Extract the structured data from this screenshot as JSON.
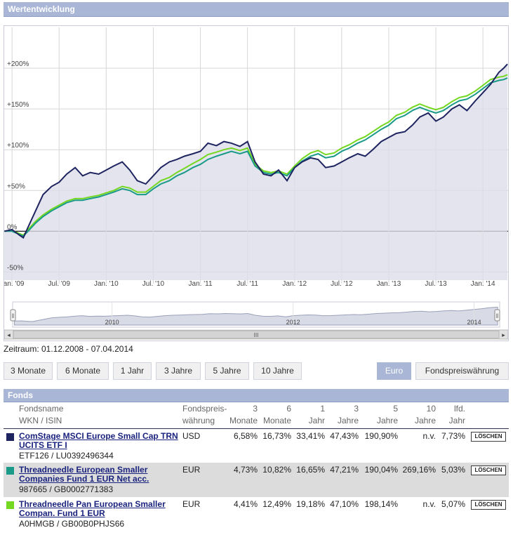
{
  "panel": {
    "title": "Wertentwicklung"
  },
  "chart_data": {
    "type": "line",
    "y_ticks": [
      "+200%",
      "+150%",
      "+100%",
      "+50%",
      "0%",
      "-50%"
    ],
    "y_tick_values": [
      200,
      150,
      100,
      50,
      0,
      -50
    ],
    "ylim": [
      -60,
      250
    ],
    "x_ticks": [
      "Jan. '09",
      "Jul. '09",
      "Jan. '10",
      "Jul. '10",
      "Jan. '11",
      "Jul. '11",
      "Jan. '12",
      "Jul. '12",
      "Jan. '13",
      "Jul. '13",
      "Jan. '14"
    ],
    "x_tick_years": [
      2009.0,
      2009.5,
      2010.0,
      2010.5,
      2011.0,
      2011.5,
      2012.0,
      2012.5,
      2013.0,
      2013.5,
      2014.0
    ],
    "xlim": [
      2008.917,
      2014.267
    ],
    "series": [
      {
        "name": "ComStage MSCI Europe Small Cap TRN UCITS ETF I",
        "color": "#1e2460",
        "x": [
          2008.92,
          2009.0,
          2009.08,
          2009.12,
          2009.17,
          2009.25,
          2009.33,
          2009.42,
          2009.5,
          2009.58,
          2009.67,
          2009.75,
          2009.83,
          2009.92,
          2010.0,
          2010.08,
          2010.17,
          2010.25,
          2010.33,
          2010.42,
          2010.5,
          2010.58,
          2010.67,
          2010.75,
          2010.83,
          2010.92,
          2011.0,
          2011.08,
          2011.17,
          2011.25,
          2011.33,
          2011.42,
          2011.5,
          2011.58,
          2011.67,
          2011.75,
          2011.83,
          2011.92,
          2012.0,
          2012.08,
          2012.17,
          2012.25,
          2012.33,
          2012.42,
          2012.5,
          2012.58,
          2012.67,
          2012.75,
          2012.83,
          2012.92,
          2013.0,
          2013.08,
          2013.17,
          2013.25,
          2013.33,
          2013.42,
          2013.5,
          2013.58,
          2013.67,
          2013.75,
          2013.83,
          2013.92,
          2014.0,
          2014.08,
          2014.17,
          2014.22,
          2014.26
        ],
        "values": [
          0,
          2,
          -5,
          -8,
          5,
          25,
          45,
          55,
          60,
          70,
          78,
          68,
          72,
          70,
          75,
          80,
          85,
          75,
          62,
          58,
          68,
          78,
          85,
          88,
          92,
          95,
          98,
          108,
          105,
          110,
          108,
          104,
          110,
          85,
          70,
          68,
          75,
          62,
          78,
          85,
          90,
          88,
          78,
          80,
          85,
          90,
          95,
          92,
          100,
          110,
          115,
          120,
          122,
          130,
          140,
          145,
          135,
          140,
          150,
          155,
          148,
          160,
          170,
          180,
          195,
          200,
          205
        ]
      },
      {
        "name": "Threadneedle European Smaller Companies Fund 1 EUR Net acc.",
        "color": "#1a9a88",
        "x": [
          2008.92,
          2009.0,
          2009.08,
          2009.12,
          2009.17,
          2009.25,
          2009.33,
          2009.42,
          2009.5,
          2009.58,
          2009.67,
          2009.75,
          2009.83,
          2009.92,
          2010.0,
          2010.08,
          2010.17,
          2010.25,
          2010.33,
          2010.42,
          2010.5,
          2010.58,
          2010.67,
          2010.75,
          2010.83,
          2010.92,
          2011.0,
          2011.08,
          2011.17,
          2011.25,
          2011.33,
          2011.42,
          2011.5,
          2011.58,
          2011.67,
          2011.75,
          2011.83,
          2011.92,
          2012.0,
          2012.08,
          2012.17,
          2012.25,
          2012.33,
          2012.42,
          2012.5,
          2012.58,
          2012.67,
          2012.75,
          2012.83,
          2012.92,
          2013.0,
          2013.08,
          2013.17,
          2013.25,
          2013.33,
          2013.42,
          2013.5,
          2013.58,
          2013.67,
          2013.75,
          2013.83,
          2013.92,
          2014.0,
          2014.08,
          2014.17,
          2014.22,
          2014.26
        ],
        "values": [
          0,
          0,
          -4,
          -6,
          0,
          10,
          18,
          25,
          30,
          35,
          38,
          38,
          40,
          42,
          45,
          48,
          52,
          50,
          45,
          45,
          52,
          58,
          62,
          68,
          72,
          78,
          82,
          88,
          92,
          95,
          98,
          95,
          98,
          80,
          72,
          70,
          72,
          68,
          78,
          86,
          92,
          95,
          90,
          92,
          98,
          102,
          108,
          112,
          118,
          125,
          130,
          138,
          142,
          148,
          152,
          148,
          145,
          148,
          155,
          160,
          162,
          168,
          175,
          182,
          185,
          186,
          188
        ]
      },
      {
        "name": "Threadneedle Pan European Smaller Compan. Fund 1 EUR",
        "color": "#74d820",
        "x": [
          2008.92,
          2009.0,
          2009.08,
          2009.12,
          2009.17,
          2009.25,
          2009.33,
          2009.42,
          2009.5,
          2009.58,
          2009.67,
          2009.75,
          2009.83,
          2009.92,
          2010.0,
          2010.08,
          2010.17,
          2010.25,
          2010.33,
          2010.42,
          2010.5,
          2010.58,
          2010.67,
          2010.75,
          2010.83,
          2010.92,
          2011.0,
          2011.08,
          2011.17,
          2011.25,
          2011.33,
          2011.42,
          2011.5,
          2011.58,
          2011.67,
          2011.75,
          2011.83,
          2011.92,
          2012.0,
          2012.08,
          2012.17,
          2012.25,
          2012.33,
          2012.42,
          2012.5,
          2012.58,
          2012.67,
          2012.75,
          2012.83,
          2012.92,
          2013.0,
          2013.08,
          2013.17,
          2013.25,
          2013.33,
          2013.42,
          2013.5,
          2013.58,
          2013.67,
          2013.75,
          2013.83,
          2013.92,
          2014.0,
          2014.08,
          2014.17,
          2014.22,
          2014.26
        ],
        "values": [
          0,
          1,
          -3,
          -5,
          2,
          12,
          20,
          27,
          32,
          37,
          40,
          40,
          42,
          44,
          47,
          50,
          55,
          53,
          48,
          48,
          55,
          62,
          66,
          72,
          77,
          83,
          88,
          94,
          97,
          100,
          102,
          99,
          102,
          82,
          74,
          72,
          74,
          70,
          80,
          89,
          96,
          99,
          94,
          96,
          102,
          106,
          112,
          116,
          122,
          129,
          134,
          142,
          146,
          152,
          156,
          152,
          149,
          152,
          159,
          164,
          166,
          172,
          179,
          186,
          189,
          190,
          192
        ]
      }
    ]
  },
  "navigator": {
    "year_labels": [
      "2010",
      "2012",
      "2014"
    ],
    "year_values": [
      2010.0,
      2012.0,
      2014.0
    ],
    "scroll_left": "◂",
    "scroll_right": "▸",
    "scroll_grip": "III",
    "handle_grip": "‖"
  },
  "zeitraum": "Zeitraum: 01.12.2008 - 07.04.2014",
  "buttons": {
    "m3": "3 Monate",
    "m6": "6 Monate",
    "y1": "1 Jahr",
    "y3": "3 Jahre",
    "y5": "5 Jahre",
    "y10": "10 Jahre",
    "euro": "Euro",
    "fondswaehrung": "Fondspreiswährung"
  },
  "fonds": {
    "title": "Fonds",
    "header": {
      "name1": "Fondsname",
      "name2": "WKN / ISIN",
      "cur1": "Fondspreis-",
      "cur2": "währung",
      "c3m1": "3",
      "c3m2": "Monate",
      "c6m1": "6",
      "c6m2": "Monate",
      "c1y1": "1",
      "c1y2": "Jahr",
      "c3y1": "3",
      "c3y2": "Jahre",
      "c5y1": "5",
      "c5y2": "Jahre",
      "c10y1": "10",
      "c10y2": "Jahre",
      "lfd1": "lfd.",
      "lfd2": "Jahr"
    },
    "rows": [
      {
        "color": "#1e2460",
        "name_line1": "ComStage MSCI Europe Small Cap TRN",
        "name_line2": "UCITS ETF I",
        "id": "ETF126 / LU0392496344",
        "currency": "USD",
        "m3": "6,58%",
        "m6": "16,73%",
        "y1": "33,41%",
        "y3": "47,43%",
        "y5": "190,90%",
        "y10": "n.v.",
        "lfd": "7,73%",
        "delete": "LÖSCHEN"
      },
      {
        "color": "#1a9a88",
        "name_line1": "Threadneedle European Smaller",
        "name_line2": "Companies Fund 1 EUR Net acc.",
        "id": "987665 / GB0002771383",
        "currency": "EUR",
        "m3": "4,73%",
        "m6": "10,82%",
        "y1": "16,65%",
        "y3": "47,21%",
        "y5": "190,04%",
        "y10": "269,16%",
        "lfd": "5,03%",
        "delete": "LÖSCHEN"
      },
      {
        "color": "#74d820",
        "name_line1": "Threadneedle Pan European Smaller",
        "name_line2": "Compan. Fund 1 EUR",
        "id": "A0HMGB / GB00B0PHJS66",
        "currency": "EUR",
        "m3": "4,41%",
        "m6": "12,49%",
        "y1": "19,18%",
        "y3": "47,10%",
        "y5": "198,14%",
        "y10": "n.v.",
        "lfd": "5,07%",
        "delete": "LÖSCHEN"
      }
    ]
  }
}
